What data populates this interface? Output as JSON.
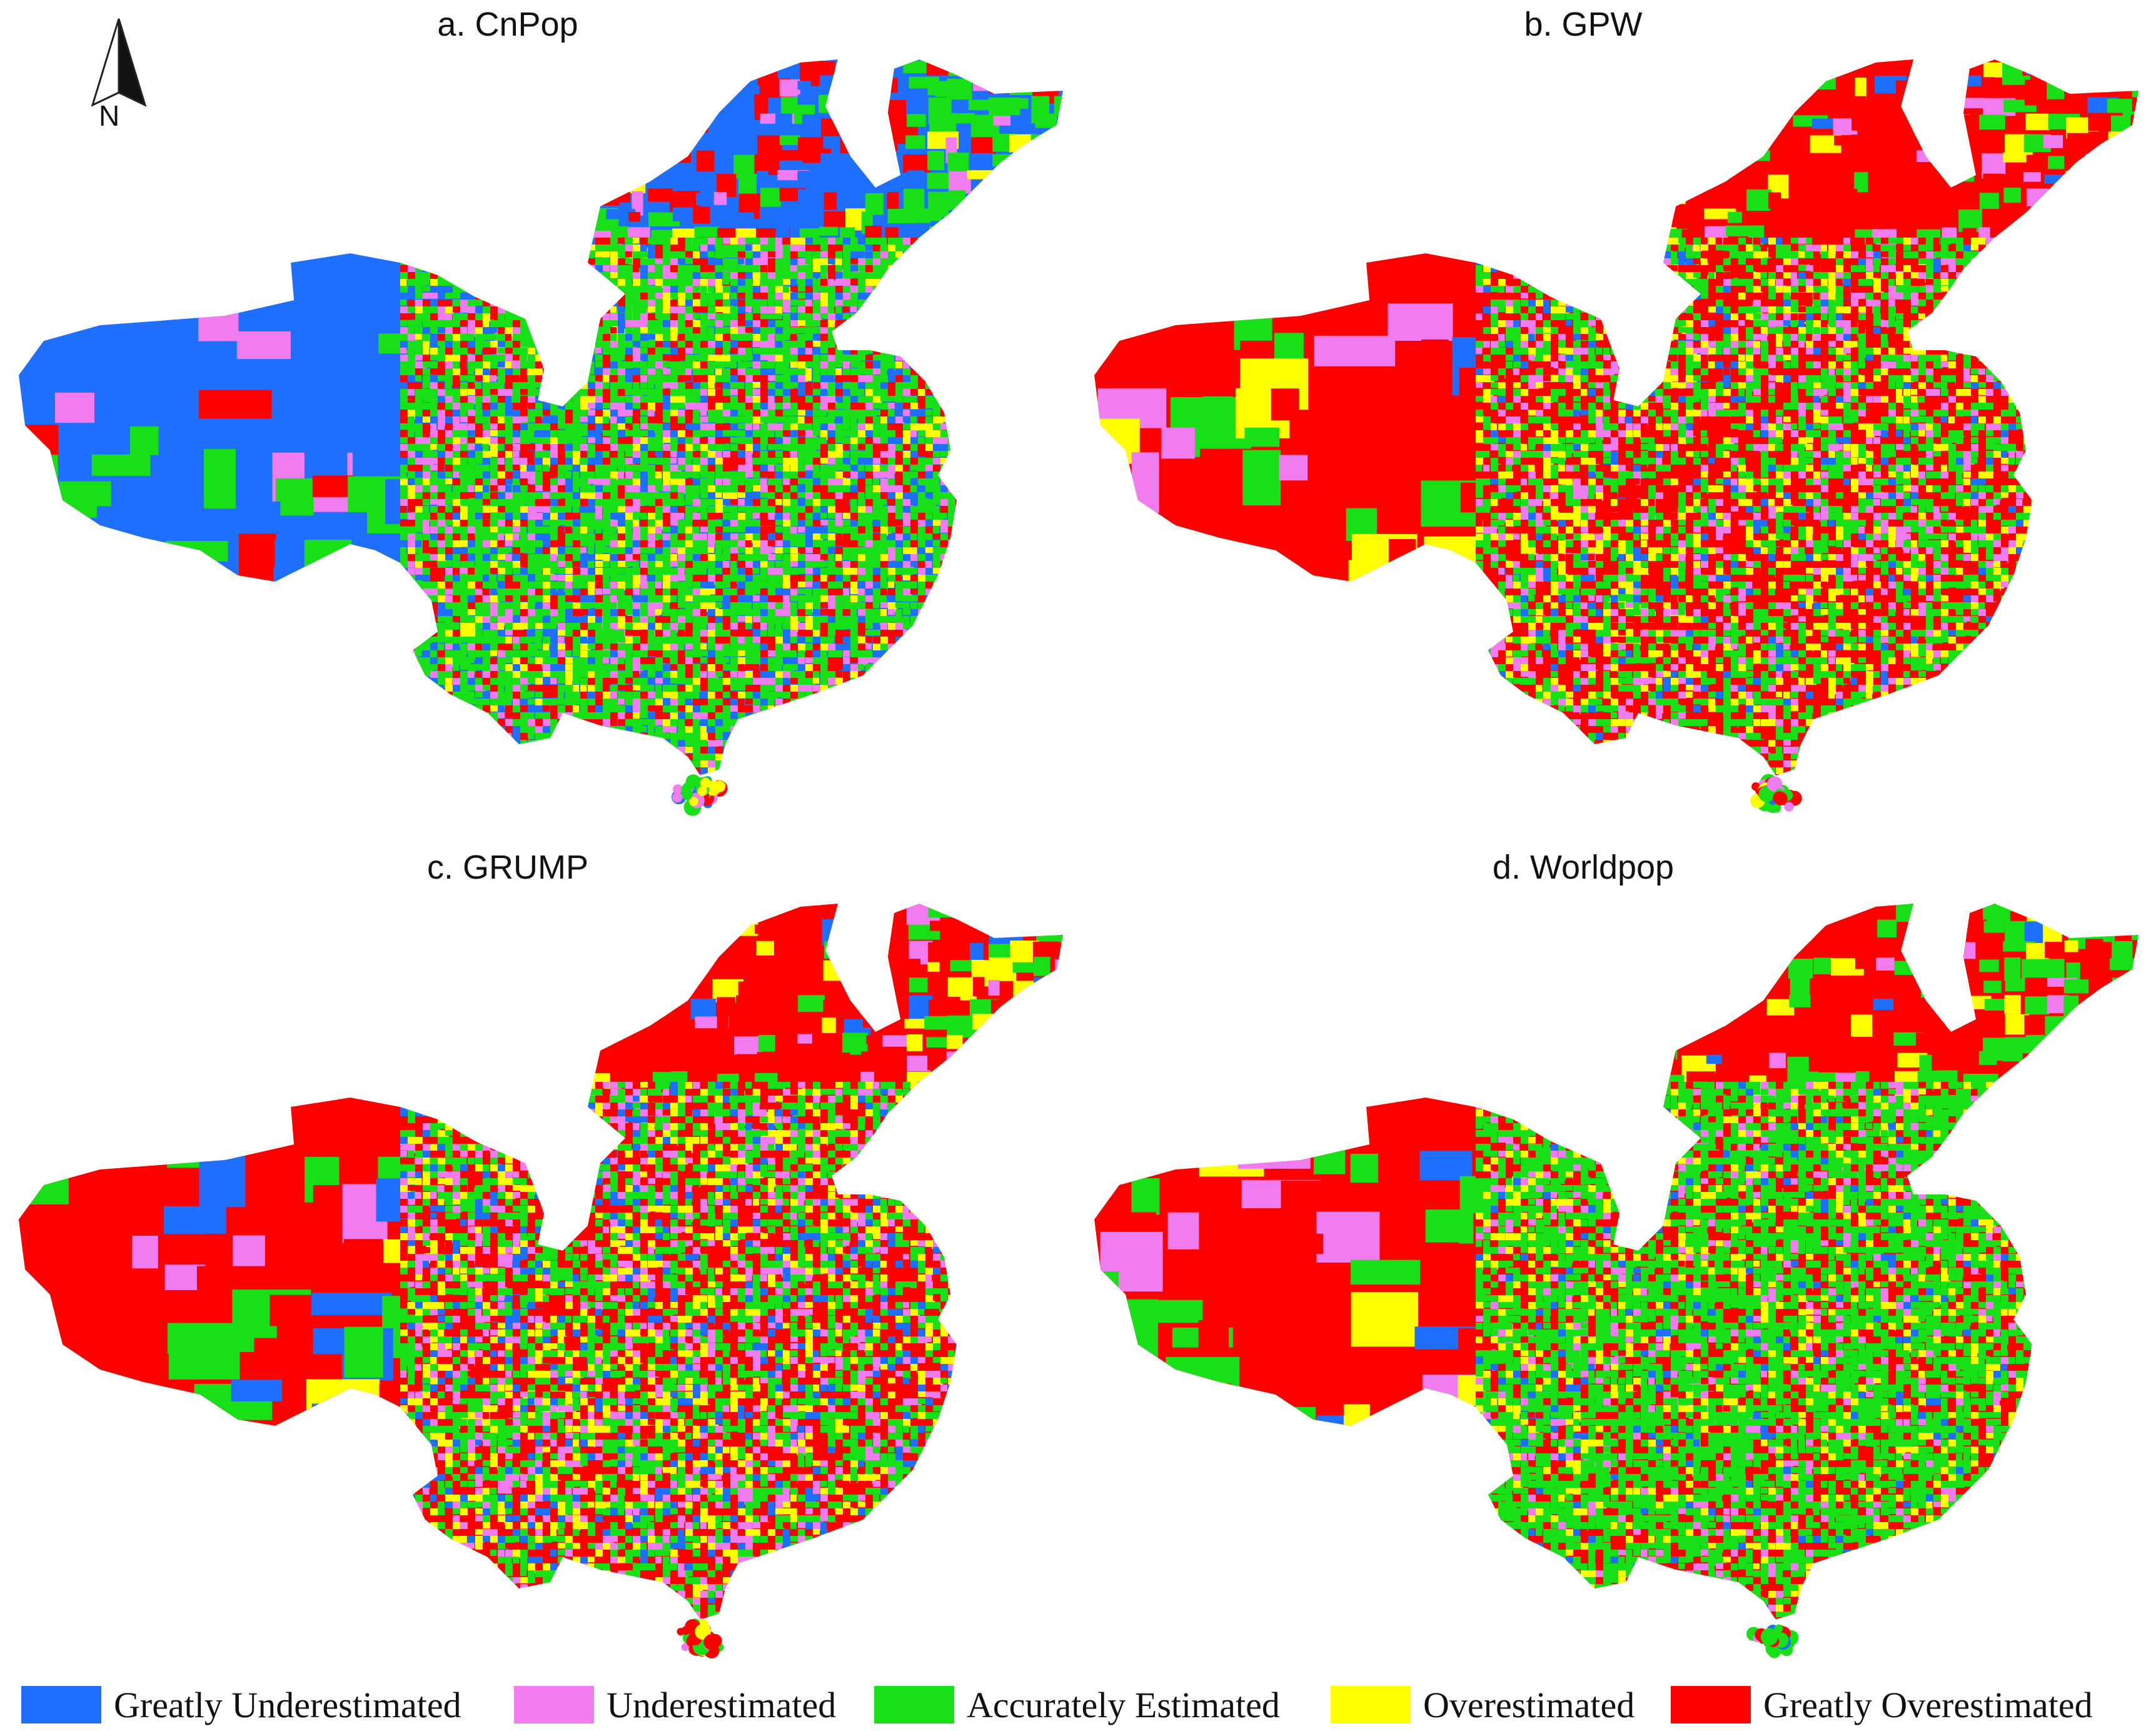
{
  "panels": [
    {
      "id": "a",
      "title": "a. CnPop"
    },
    {
      "id": "b",
      "title": "b. GPW"
    },
    {
      "id": "c",
      "title": "c. GRUMP"
    },
    {
      "id": "d",
      "title": "d. Worldpop"
    }
  ],
  "north_arrow": {
    "label": "N"
  },
  "legend": [
    {
      "label": "Greatly Underestimated",
      "color": "#1f6fff"
    },
    {
      "label": "Underestimated",
      "color": "#f07cf0"
    },
    {
      "label": "Accurately Estimated",
      "color": "#17e017"
    },
    {
      "label": "Overestimated",
      "color": "#ffff00"
    },
    {
      "label": "Greatly Overestimated",
      "color": "#ff0000"
    }
  ],
  "palette": {
    "greatly_under": "#1f6fff",
    "under": "#f07cf0",
    "accurate": "#17e017",
    "over": "#ffff00",
    "greatly_over": "#ff0000"
  }
}
